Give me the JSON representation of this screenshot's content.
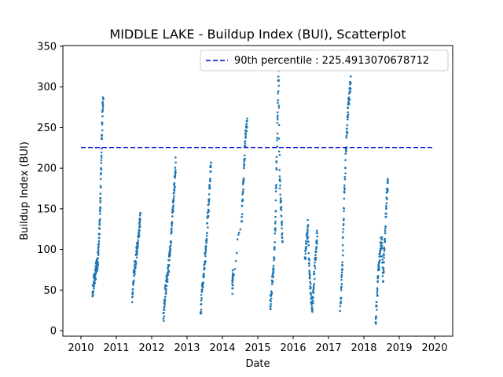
{
  "chart_data": {
    "type": "scatter",
    "title": "MIDDLE LAKE - Buildup Index (BUI), Scatterplot",
    "xlabel": "Date",
    "ylabel": "Buildup Index (BUI)",
    "xlim": [
      2010,
      2020
    ],
    "ylim": [
      0,
      350
    ],
    "xticks": [
      "2010",
      "2011",
      "2012",
      "2013",
      "2014",
      "2015",
      "2016",
      "2017",
      "2018",
      "2019",
      "2020"
    ],
    "yticks": [
      "0",
      "50",
      "100",
      "150",
      "200",
      "250",
      "300",
      "350"
    ],
    "grid": false,
    "legend_position": "top-right",
    "colors": {
      "points": "#1f77b4",
      "percentile_line": "#0000cc"
    },
    "reference_line": {
      "label": "90th percentile : 225.4913070678712",
      "y": 225.4913070678712,
      "x_range": [
        2010,
        2020
      ],
      "style": "dashed"
    },
    "seasons": [
      {
        "start": 2010.33,
        "end": 2010.63,
        "points": [
          [
            2010.33,
            45
          ],
          [
            2010.35,
            55
          ],
          [
            2010.37,
            60
          ],
          [
            2010.39,
            65
          ],
          [
            2010.41,
            70
          ],
          [
            2010.43,
            75
          ],
          [
            2010.45,
            80
          ],
          [
            2010.47,
            85
          ],
          [
            2010.49,
            95
          ],
          [
            2010.51,
            110
          ],
          [
            2010.53,
            130
          ],
          [
            2010.55,
            160
          ],
          [
            2010.57,
            200
          ],
          [
            2010.59,
            240
          ],
          [
            2010.61,
            270
          ],
          [
            2010.63,
            285
          ]
        ]
      },
      {
        "start": 2011.45,
        "end": 2011.68,
        "points": [
          [
            2011.45,
            35
          ],
          [
            2011.48,
            60
          ],
          [
            2011.51,
            75
          ],
          [
            2011.54,
            85
          ],
          [
            2011.57,
            95
          ],
          [
            2011.6,
            105
          ],
          [
            2011.63,
            115
          ],
          [
            2011.66,
            130
          ],
          [
            2011.68,
            145
          ]
        ]
      },
      {
        "start": 2012.33,
        "end": 2012.68,
        "points": [
          [
            2012.33,
            15
          ],
          [
            2012.36,
            30
          ],
          [
            2012.39,
            50
          ],
          [
            2012.42,
            60
          ],
          [
            2012.45,
            70
          ],
          [
            2012.48,
            80
          ],
          [
            2012.51,
            95
          ],
          [
            2012.54,
            110
          ],
          [
            2012.57,
            130
          ],
          [
            2012.6,
            150
          ],
          [
            2012.63,
            170
          ],
          [
            2012.66,
            190
          ],
          [
            2012.68,
            207
          ]
        ]
      },
      {
        "start": 2013.38,
        "end": 2013.68,
        "points": [
          [
            2013.38,
            22
          ],
          [
            2013.41,
            40
          ],
          [
            2013.44,
            55
          ],
          [
            2013.47,
            70
          ],
          [
            2013.5,
            85
          ],
          [
            2013.53,
            100
          ],
          [
            2013.56,
            120
          ],
          [
            2013.59,
            140
          ],
          [
            2013.62,
            160
          ],
          [
            2013.65,
            185
          ],
          [
            2013.68,
            207
          ]
        ]
      },
      {
        "start": 2014.28,
        "end": 2014.7,
        "points": [
          [
            2014.28,
            52
          ],
          [
            2014.29,
            62
          ],
          [
            2014.3,
            70
          ],
          [
            2014.55,
            140
          ],
          [
            2014.58,
            170
          ],
          [
            2014.61,
            200
          ],
          [
            2014.64,
            230
          ],
          [
            2014.67,
            250
          ],
          [
            2014.7,
            258
          ]
        ]
      },
      {
        "start": 2015.35,
        "end": 2015.7,
        "points": [
          [
            2015.35,
            30
          ],
          [
            2015.38,
            45
          ],
          [
            2015.41,
            60
          ],
          [
            2015.44,
            75
          ],
          [
            2015.47,
            100
          ],
          [
            2015.5,
            140
          ],
          [
            2015.53,
            200
          ],
          [
            2015.56,
            260
          ],
          [
            2015.59,
            320
          ],
          [
            2015.62,
            190
          ],
          [
            2015.65,
            160
          ],
          [
            2015.68,
            130
          ],
          [
            2015.7,
            110
          ]
        ]
      },
      {
        "start": 2016.33,
        "end": 2016.68,
        "points": [
          [
            2016.33,
            90
          ],
          [
            2016.36,
            100
          ],
          [
            2016.39,
            120
          ],
          [
            2016.42,
            130
          ],
          [
            2016.45,
            80
          ],
          [
            2016.48,
            60
          ],
          [
            2016.51,
            40
          ],
          [
            2016.54,
            25
          ],
          [
            2016.57,
            50
          ],
          [
            2016.6,
            70
          ],
          [
            2016.63,
            90
          ],
          [
            2016.66,
            110
          ],
          [
            2016.68,
            120
          ]
        ]
      },
      {
        "start": 2017.33,
        "end": 2017.7,
        "points": [
          [
            2017.33,
            30
          ],
          [
            2017.36,
            50
          ],
          [
            2017.39,
            80
          ],
          [
            2017.42,
            130
          ],
          [
            2017.45,
            170
          ],
          [
            2017.48,
            210
          ],
          [
            2017.51,
            240
          ],
          [
            2017.54,
            260
          ],
          [
            2017.57,
            280
          ],
          [
            2017.6,
            295
          ],
          [
            2017.63,
            305
          ]
        ]
      },
      {
        "start": 2018.33,
        "end": 2018.68,
        "points": [
          [
            2018.33,
            10
          ],
          [
            2018.36,
            30
          ],
          [
            2018.39,
            60
          ],
          [
            2018.42,
            80
          ],
          [
            2018.45,
            95
          ],
          [
            2018.48,
            105
          ],
          [
            2018.51,
            115
          ],
          [
            2018.54,
            60
          ],
          [
            2018.57,
            90
          ],
          [
            2018.6,
            120
          ],
          [
            2018.63,
            150
          ],
          [
            2018.66,
            175
          ],
          [
            2018.68,
            185
          ]
        ]
      }
    ]
  }
}
